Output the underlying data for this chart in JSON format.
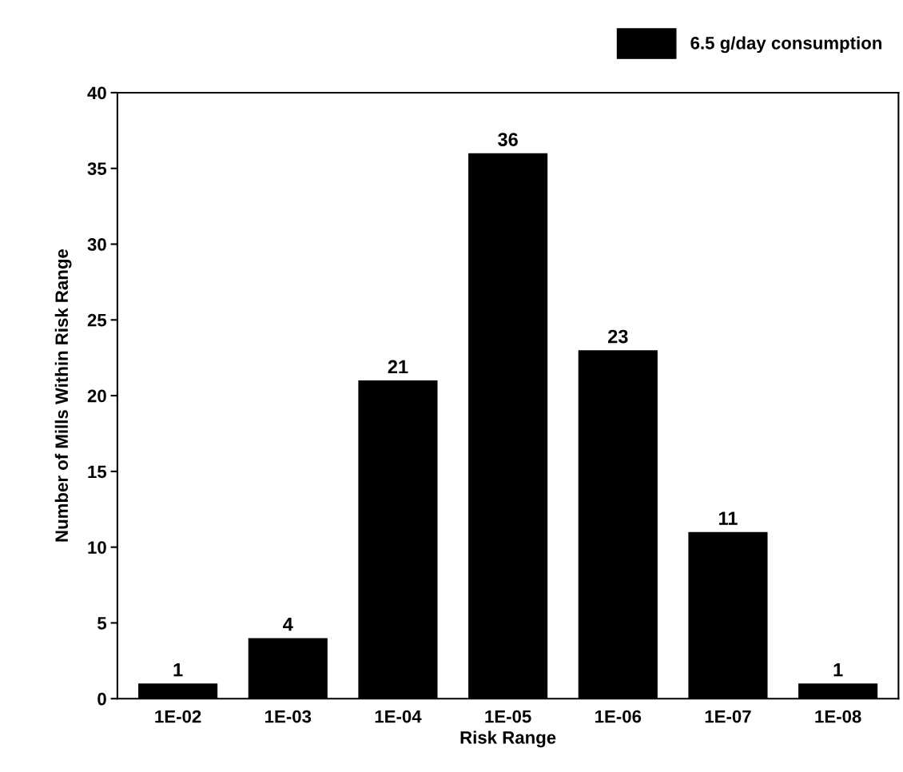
{
  "chart_data": {
    "type": "bar",
    "xlabel": "Risk Range",
    "ylabel": "Number of Mills Within Risk Range",
    "categories": [
      "1E-02",
      "1E-03",
      "1E-04",
      "1E-05",
      "1E-06",
      "1E-07",
      "1E-08"
    ],
    "series": [
      {
        "name": "6.5 g/day consumption",
        "color": "#000000",
        "values": [
          1,
          4,
          21,
          36,
          23,
          11,
          1
        ]
      }
    ],
    "ylim": [
      0,
      40
    ],
    "yticks": [
      0,
      5,
      10,
      15,
      20,
      25,
      30,
      35,
      40
    ],
    "data_labels": true,
    "legend": "top right",
    "grid": false
  }
}
